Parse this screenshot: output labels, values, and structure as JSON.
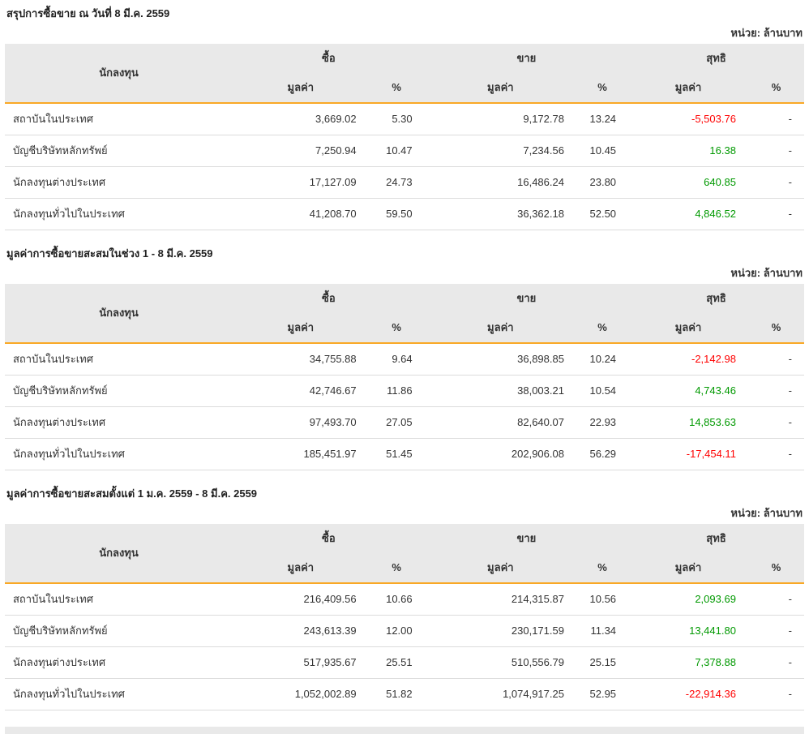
{
  "unit_label": "หน่วย: ล้านบาท",
  "columns": {
    "investor": "นักลงทุน",
    "buy": "ซื้อ",
    "sell": "ขาย",
    "net": "สุทธิ",
    "value": "มูลค่า",
    "percent": "%"
  },
  "colors": {
    "positive": "#009900",
    "negative": "#ff0000",
    "header_bg": "#e9e9e9",
    "header_accent": "#f9a825"
  },
  "tables": [
    {
      "title": "สรุปการซื้อขาย ณ วันที่ 8 มี.ค. 2559",
      "rows": [
        {
          "investor": "สถาบันในประเทศ",
          "buy_value": "3,669.02",
          "buy_percent": "5.30",
          "sell_value": "9,172.78",
          "sell_percent": "13.24",
          "net_value": "-5,503.76",
          "net_percent": "-"
        },
        {
          "investor": "บัญชีบริษัทหลักทรัพย์",
          "buy_value": "7,250.94",
          "buy_percent": "10.47",
          "sell_value": "7,234.56",
          "sell_percent": "10.45",
          "net_value": "16.38",
          "net_percent": "-"
        },
        {
          "investor": "นักลงทุนต่างประเทศ",
          "buy_value": "17,127.09",
          "buy_percent": "24.73",
          "sell_value": "16,486.24",
          "sell_percent": "23.80",
          "net_value": "640.85",
          "net_percent": "-"
        },
        {
          "investor": "นักลงทุนทั่วไปในประเทศ",
          "buy_value": "41,208.70",
          "buy_percent": "59.50",
          "sell_value": "36,362.18",
          "sell_percent": "52.50",
          "net_value": "4,846.52",
          "net_percent": "-"
        }
      ]
    },
    {
      "title": "มูลค่าการซื้อขายสะสมในช่วง 1 - 8 มี.ค. 2559",
      "rows": [
        {
          "investor": "สถาบันในประเทศ",
          "buy_value": "34,755.88",
          "buy_percent": "9.64",
          "sell_value": "36,898.85",
          "sell_percent": "10.24",
          "net_value": "-2,142.98",
          "net_percent": "-"
        },
        {
          "investor": "บัญชีบริษัทหลักทรัพย์",
          "buy_value": "42,746.67",
          "buy_percent": "11.86",
          "sell_value": "38,003.21",
          "sell_percent": "10.54",
          "net_value": "4,743.46",
          "net_percent": "-"
        },
        {
          "investor": "นักลงทุนต่างประเทศ",
          "buy_value": "97,493.70",
          "buy_percent": "27.05",
          "sell_value": "82,640.07",
          "sell_percent": "22.93",
          "net_value": "14,853.63",
          "net_percent": "-"
        },
        {
          "investor": "นักลงทุนทั่วไปในประเทศ",
          "buy_value": "185,451.97",
          "buy_percent": "51.45",
          "sell_value": "202,906.08",
          "sell_percent": "56.29",
          "net_value": "-17,454.11",
          "net_percent": "-"
        }
      ]
    },
    {
      "title": "มูลค่าการซื้อขายสะสมตั้งแต่ 1 ม.ค. 2559 - 8 มี.ค. 2559",
      "rows": [
        {
          "investor": "สถาบันในประเทศ",
          "buy_value": "216,409.56",
          "buy_percent": "10.66",
          "sell_value": "214,315.87",
          "sell_percent": "10.56",
          "net_value": "2,093.69",
          "net_percent": "-"
        },
        {
          "investor": "บัญชีบริษัทหลักทรัพย์",
          "buy_value": "243,613.39",
          "buy_percent": "12.00",
          "sell_value": "230,171.59",
          "sell_percent": "11.34",
          "net_value": "13,441.80",
          "net_percent": "-"
        },
        {
          "investor": "นักลงทุนต่างประเทศ",
          "buy_value": "517,935.67",
          "buy_percent": "25.51",
          "sell_value": "510,556.79",
          "sell_percent": "25.15",
          "net_value": "7,378.88",
          "net_percent": "-"
        },
        {
          "investor": "นักลงทุนทั่วไปในประเทศ",
          "buy_value": "1,052,002.89",
          "buy_percent": "51.82",
          "sell_value": "1,074,917.25",
          "sell_percent": "52.95",
          "net_value": "-22,914.36",
          "net_percent": "-"
        }
      ]
    }
  ]
}
